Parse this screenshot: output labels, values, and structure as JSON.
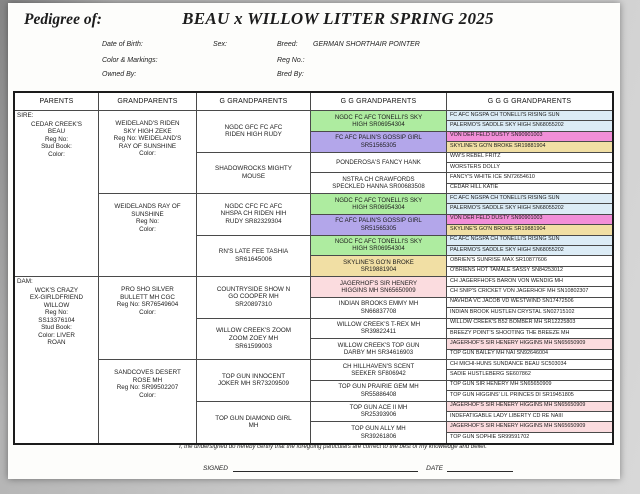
{
  "header": {
    "pedigree_label": "Pedigree of:",
    "litter_title": "BEAU x WILLOW LITTER SPRING 2025"
  },
  "info": {
    "rows": [
      {
        "left_label": "Date of Birth:",
        "mid_label": "Sex:",
        "right_label": "Breed:",
        "right_value": "GERMAN SHORTHAIR POINTER"
      },
      {
        "left_label": "Color & Markings:",
        "right_label": "Reg No.:"
      },
      {
        "left_label": "Owned By:",
        "right_label": "Bred By:"
      }
    ]
  },
  "palette": {
    "green": "#aeeca0",
    "purple": "#b3a6ea",
    "tan": "#f1dfa4",
    "pink": "#f28fd8",
    "blue": "#dcecf6",
    "lightpink": "#fbdcdf",
    "white": "#ffffff"
  },
  "table": {
    "headers": [
      "PARENTS",
      "GRANDPARENTS",
      "G GRANDPARENTS",
      "G G GRANDPARENTS",
      "G G G GRANDPARENTS"
    ],
    "parents": [
      {
        "tag": "SIRE:",
        "body": "CEDAR CREEK'S\nBEAU\nReg No:\nStud Book:\nColor:"
      },
      {
        "tag": "DAM:",
        "body": "WCK'S CRAZY\nEX-GIRLDFRIEND\nWILLOW\nReg No:\nSS13376104\nStud Book:\nColor: LIVER\nROAN"
      }
    ],
    "grandparents": [
      "WEIDELAND'S RIDEN\nSKY HIGH ZEKE\nReg No: WEIDELAND'S\nRAY OF SUNSHINE\nColor:",
      "WEIDELANDS RAY OF\nSUNSHINE\nReg No:\nColor:",
      "PRO SHO SILVER\nBULLETT MH CGC\nReg No: SR76549604\nColor:",
      "SANDCOVES DESERT\nROSE MH\nReg No: SR99502207\nColor:"
    ],
    "g_grandparents": [
      "NGDC GFC FC AFC\nRIDEN HIGH RUDY",
      "SHADOWROCKS MIGHTY\nMOUSE",
      "NGDC CFC FC AFC\nNHSPA CH RIDEN HIH\nRUDY SR82329304",
      "RN'S LATE FEE TASHIA\nSR61645006",
      "COUNTRYSIDE SHOW N\nGO COOPER MH\nSR20897310",
      "WILLOW CREEK'S ZOOM\nZOOM ZOEY MH\nSR61599003",
      "TOP GUN INNOCENT\nJOKER MH SR73209509",
      "TOP GUN DIAMOND GIRL\nMH"
    ],
    "gg_grandparents": [
      {
        "text": "NGDC FC AFC TONELLI'S SKY\nHIGH SR06954304",
        "hl": "green"
      },
      {
        "text": "FC AFC PALIN'S GOSSIP GIRL\nSR51565305",
        "hl": "purple"
      },
      {
        "text": "PONDEROSA'S FANCY HANK",
        "hl": "white"
      },
      {
        "text": "NSTRA CH CRAWFORDS\nSPECKLED HANNA SR00683508",
        "hl": "white"
      },
      {
        "text": "NGDC FC AFC TONELLI'S SKY\nHIGH SR06954304",
        "hl": "green"
      },
      {
        "text": "FC AFC PALIN'S GOSSIP GIRL\nSR51565305",
        "hl": "purple"
      },
      {
        "text": "NGDC FC AFC TONELLI'S SKY\nHIGH SR06954304",
        "hl": "green"
      },
      {
        "text": "SKYLINE'S GO'N BROKE\nSR19881904",
        "hl": "tan"
      },
      {
        "text": "JAGERHOF'S SIR HENERY\nHIGGINS MH SN65650909",
        "hl": "lightpink"
      },
      {
        "text": "INDIAN BROOKS EMMY MH\nSN66837708",
        "hl": "white"
      },
      {
        "text": "WILLOW CREEK'S T-REX MH\nSR39822411",
        "hl": "white"
      },
      {
        "text": "WILLOW CREEK'S TOP GUN\nDARBY MH SR34616903",
        "hl": "white"
      },
      {
        "text": "CH HILLHAVEN'S SCENT\nSEEKER SF806942",
        "hl": "white"
      },
      {
        "text": "TOP GUN PRAIRIE GEM MH\nSR55886408",
        "hl": "white"
      },
      {
        "text": "TOP GUN ACE II MH\nSR25393906",
        "hl": "white"
      },
      {
        "text": "TOP GUN ALLY MH\nSR39261806",
        "hl": "white"
      }
    ],
    "ggg_grandparents": [
      {
        "text": "FC AFC NGSPA CH TONELLI'S RISING SUN",
        "hl": "blue"
      },
      {
        "text": "PALERMO'S SADDLE SKY HIGH SN68055202",
        "hl": "blue"
      },
      {
        "text": "VON DER FELD DUSTY SN90901003",
        "hl": "pink"
      },
      {
        "text": "SKYLINE'S GO'N BROKE SR19881904",
        "hl": "tan"
      },
      {
        "text": "WW'S REBEL FRITZ",
        "hl": "white"
      },
      {
        "text": "WORSTERS DOLLY",
        "hl": "white"
      },
      {
        "text": "FANCY'S WHITE ICE SN72654610",
        "hl": "white"
      },
      {
        "text": "CEDAR HILL KATIE",
        "hl": "white"
      },
      {
        "text": "FC AFC NGSPA CH TONELLI'S RISING SUN",
        "hl": "blue"
      },
      {
        "text": "PALERMO'S SADDLE SKY HIGH SN68055202",
        "hl": "blue"
      },
      {
        "text": "VON DER FELD DUSTY SN90901003",
        "hl": "pink"
      },
      {
        "text": "SKYLINE'S GO'N BROKE SR19881904",
        "hl": "tan"
      },
      {
        "text": "FC AFC NGSPA CH TONELLI'S RISING SUN",
        "hl": "blue"
      },
      {
        "text": "PALERMO'S SADDLE SKY HIGH SN68055202",
        "hl": "blue"
      },
      {
        "text": "OBRIEN'S SUNRISE MAX SR10877606",
        "hl": "white"
      },
      {
        "text": "O'BRIENS HOT TAMALE SASSY SN84253012",
        "hl": "white"
      },
      {
        "text": "CH JAGERFHOFS BARON VON WENDIG MH",
        "hl": "white"
      },
      {
        "text": "CH SNIP'S CRICKET VON JAGERHOF MH SN10802307",
        "hl": "white"
      },
      {
        "text": "NAVHDA VC JACOB VD WESTWIND SN17472506",
        "hl": "white"
      },
      {
        "text": "INDIAN BROOK HUSTLEN CRYSTAL SN02715102",
        "hl": "white"
      },
      {
        "text": "WILLOW CREEK'S B52 BOMBER MH SR12225803",
        "hl": "white"
      },
      {
        "text": "BREEZY POINT'S SHOOTING THE BREEZE MH",
        "hl": "white"
      },
      {
        "text": "JAGERHOF'S SIR HENERY HIGGINS MH SN65650909",
        "hl": "lightpink"
      },
      {
        "text": "TOP GUN BAILEY MH NAI SN92646004",
        "hl": "white"
      },
      {
        "text": "CH MICHI-HUNS SUNDANCE BEAU SC503034",
        "hl": "white"
      },
      {
        "text": "SADIE HUSTLEBERG SE607862",
        "hl": "white"
      },
      {
        "text": "TOP GUN SIR HENERY MH SN65650909",
        "hl": "white"
      },
      {
        "text": "TOP GUN HIGGINS' LIL PRINCES DI SR19451805",
        "hl": "white"
      },
      {
        "text": "JAGERHOF'S SIR HENERY HIGGINS MH SN65650909",
        "hl": "lightpink"
      },
      {
        "text": "INDEFATIGABLE LADY LIBERTY CD RE NAIII",
        "hl": "white"
      },
      {
        "text": "JAGERHOF'S SIR HENERY HIGGINS MH SN65650909",
        "hl": "lightpink"
      },
      {
        "text": "TOP GUN SOPHIE SR99591702",
        "hl": "white"
      }
    ]
  },
  "footer": {
    "certify": "I, the undersigned do hereby certify that the foregoing particulars are correct to the best of my knowledge and belief.",
    "signed_label": "SIGNED",
    "date_label": "DATE"
  }
}
